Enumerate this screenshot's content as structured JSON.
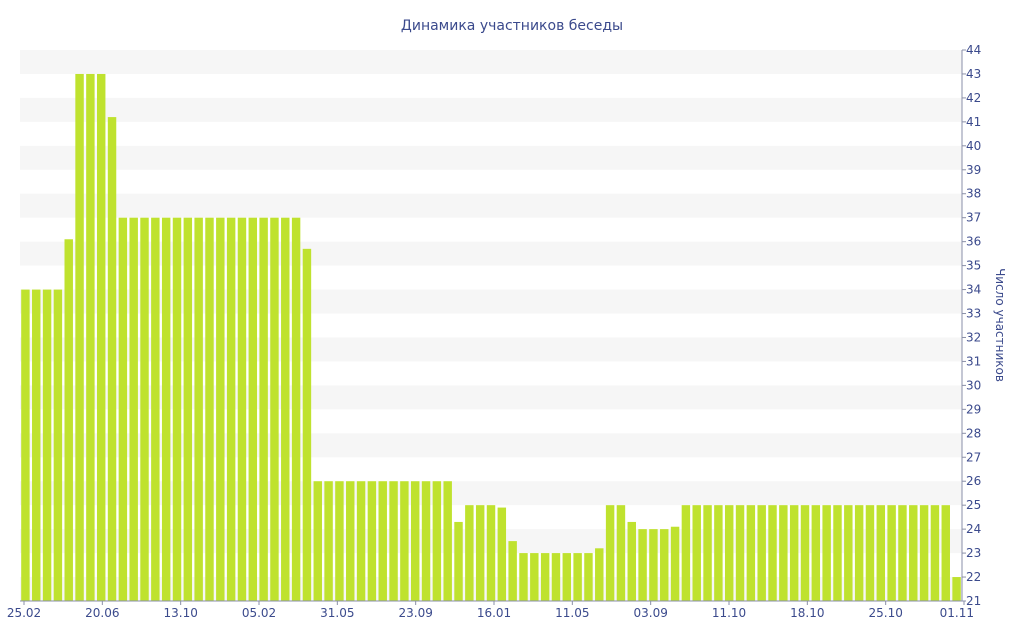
{
  "chart_data": {
    "type": "bar",
    "title": "Динамика участников беседы",
    "xlabel": "",
    "ylabel": "Число участников",
    "y_axis_side": "right",
    "ylim": [
      21,
      44
    ],
    "yticks": [
      21,
      22,
      23,
      24,
      25,
      26,
      27,
      28,
      29,
      30,
      31,
      32,
      33,
      34,
      35,
      36,
      37,
      38,
      39,
      40,
      41,
      42,
      43,
      44
    ],
    "xtick_labels": [
      "25.02",
      "20.06",
      "13.10",
      "05.02",
      "31.05",
      "23.09",
      "16.01",
      "11.05",
      "03.09",
      "11.10",
      "18.10",
      "25.10",
      "01.11"
    ],
    "grid": "alternating horizontal bands",
    "bar_color": "#bfe22e",
    "values": [
      34,
      34,
      34,
      34,
      36.1,
      43,
      43,
      43,
      41.2,
      37,
      37,
      37,
      37,
      37,
      37,
      37,
      37,
      37,
      37,
      37,
      37,
      37,
      37,
      37,
      37,
      37,
      35.7,
      26,
      26,
      26,
      26,
      26,
      26,
      26,
      26,
      26,
      26,
      26,
      26,
      26,
      24.3,
      25,
      25,
      25,
      24.9,
      23.5,
      23,
      23,
      23,
      23,
      23,
      23,
      23,
      23.2,
      25,
      25,
      24.3,
      24,
      24,
      24,
      24.1,
      25,
      25,
      25,
      25,
      25,
      25,
      25,
      25,
      25,
      25,
      25,
      25,
      25,
      25,
      25,
      25,
      25,
      25,
      25,
      25,
      25,
      25,
      25,
      25,
      25,
      22
    ]
  }
}
